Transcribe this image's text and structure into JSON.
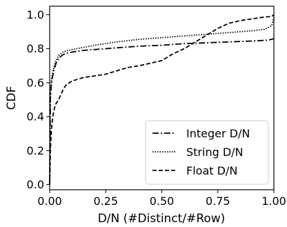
{
  "chart_data": {
    "type": "line",
    "xlabel": "D/N (#Distinct/#Row)",
    "ylabel": "CDF",
    "xlim": [
      0.0,
      1.0
    ],
    "ylim": [
      -0.03,
      1.05
    ],
    "x_ticks": [
      "0.00",
      "0.25",
      "0.50",
      "0.75",
      "1.00"
    ],
    "x_tick_values": [
      0.0,
      0.25,
      0.5,
      0.75,
      1.0
    ],
    "y_ticks": [
      "0.0",
      "0.2",
      "0.4",
      "0.6",
      "0.8",
      "1.0"
    ],
    "y_tick_values": [
      0.0,
      0.2,
      0.4,
      0.6,
      0.8,
      1.0
    ],
    "grid": false,
    "legend_position": "lower-right",
    "series": [
      {
        "name": "Integer D/N",
        "style": "dashdot",
        "color": "#000000",
        "x": [
          0.0,
          0.003,
          0.007,
          0.012,
          0.02,
          0.03,
          0.045,
          0.06,
          0.08,
          0.1,
          0.15,
          0.2,
          0.3,
          0.4,
          0.5,
          0.6,
          0.7,
          0.8,
          0.9,
          0.97,
          0.99,
          1.0
        ],
        "y": [
          0.0,
          0.5,
          0.58,
          0.63,
          0.68,
          0.72,
          0.75,
          0.765,
          0.775,
          0.78,
          0.79,
          0.795,
          0.805,
          0.815,
          0.82,
          0.83,
          0.835,
          0.84,
          0.845,
          0.85,
          0.855,
          0.86
        ]
      },
      {
        "name": "String D/N",
        "style": "dotted",
        "color": "#000000",
        "x": [
          0.0,
          0.003,
          0.008,
          0.015,
          0.025,
          0.04,
          0.06,
          0.08,
          0.12,
          0.2,
          0.3,
          0.4,
          0.5,
          0.6,
          0.7,
          0.8,
          0.9,
          0.96,
          0.99,
          1.0
        ],
        "y": [
          0.0,
          0.55,
          0.62,
          0.67,
          0.72,
          0.76,
          0.78,
          0.79,
          0.8,
          0.82,
          0.84,
          0.855,
          0.865,
          0.875,
          0.885,
          0.895,
          0.905,
          0.915,
          0.935,
          0.985
        ]
      },
      {
        "name": "Float D/N",
        "style": "dashed",
        "color": "#000000",
        "x": [
          0.0,
          0.003,
          0.008,
          0.015,
          0.025,
          0.04,
          0.06,
          0.075,
          0.1,
          0.15,
          0.2,
          0.25,
          0.3,
          0.35,
          0.4,
          0.45,
          0.5,
          0.55,
          0.6,
          0.65,
          0.7,
          0.75,
          0.8,
          0.85,
          0.9,
          0.95,
          0.99,
          1.0
        ],
        "y": [
          0.0,
          0.2,
          0.33,
          0.41,
          0.47,
          0.5,
          0.56,
          0.59,
          0.61,
          0.63,
          0.64,
          0.65,
          0.67,
          0.69,
          0.7,
          0.715,
          0.73,
          0.77,
          0.8,
          0.84,
          0.88,
          0.92,
          0.95,
          0.965,
          0.975,
          0.985,
          0.99,
          1.0
        ]
      }
    ]
  }
}
